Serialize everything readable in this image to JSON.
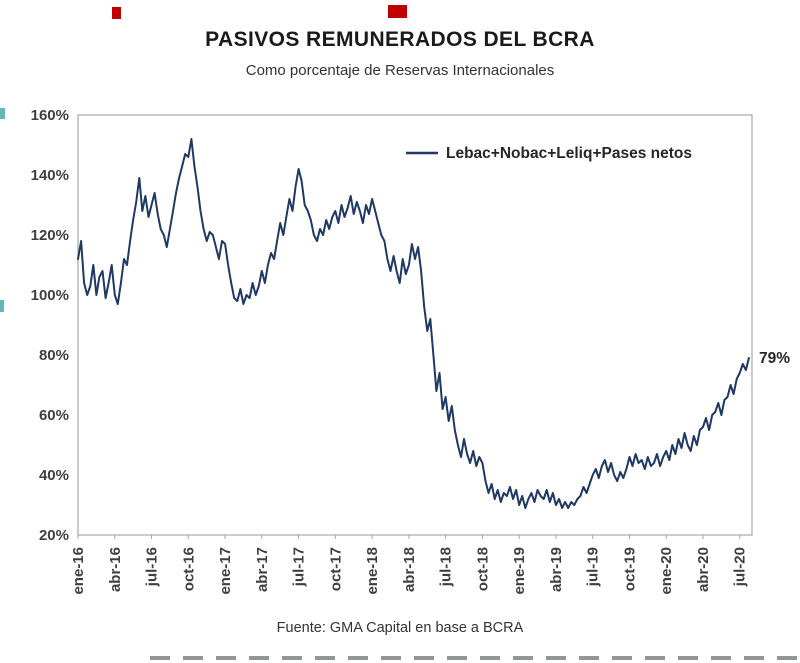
{
  "chart_data": {
    "type": "line",
    "title": "PASIVOS REMUNERADOS DEL BCRA",
    "subtitle": "Como porcentaje de Reservas Internacionales",
    "source": "Fuente: GMA Capital en base a BCRA",
    "legend": [
      {
        "name": "Lebac+Nobac+Leliq+Pases netos",
        "color": "#1f3864"
      }
    ],
    "end_label": "79%",
    "line_color": "#1f3864",
    "ylim": [
      20,
      160
    ],
    "y_ticks": [
      160,
      140,
      120,
      100,
      80,
      60,
      40,
      20
    ],
    "y_tick_suffix": "%",
    "x_tick_labels": [
      "ene-16",
      "abr-16",
      "jul-16",
      "oct-16",
      "ene-17",
      "abr-17",
      "jul-17",
      "oct-17",
      "ene-18",
      "abr-18",
      "jul-18",
      "oct-18",
      "ene-19",
      "abr-19",
      "jul-19",
      "oct-19",
      "ene-20",
      "abr-20",
      "jul-20"
    ],
    "x_tick_positions_months": [
      0,
      3,
      6,
      9,
      12,
      15,
      18,
      21,
      24,
      27,
      30,
      33,
      36,
      39,
      42,
      45,
      48,
      51,
      54
    ],
    "x_total_months": 55,
    "points_per_month": 4,
    "values": [
      112,
      118,
      104,
      100,
      103,
      110,
      100,
      106,
      108,
      99,
      104,
      110,
      100,
      97,
      104,
      112,
      110,
      118,
      125,
      131,
      139,
      128,
      133,
      126,
      130,
      134,
      127,
      122,
      120,
      116,
      122,
      128,
      134,
      139,
      143,
      147,
      146,
      152,
      143,
      136,
      128,
      122,
      118,
      121,
      120,
      116,
      112,
      118,
      117,
      110,
      104,
      99,
      98,
      102,
      97,
      100,
      99,
      104,
      100,
      103,
      108,
      104,
      110,
      114,
      112,
      118,
      124,
      120,
      126,
      132,
      128,
      136,
      142,
      138,
      130,
      128,
      125,
      120,
      118,
      122,
      120,
      125,
      122,
      126,
      128,
      124,
      130,
      126,
      129,
      133,
      127,
      131,
      128,
      124,
      130,
      127,
      132,
      128,
      124,
      120,
      118,
      112,
      108,
      113,
      108,
      104,
      112,
      107,
      110,
      117,
      112,
      116,
      108,
      96,
      88,
      92,
      80,
      68,
      74,
      62,
      66,
      58,
      63,
      55,
      50,
      46,
      52,
      47,
      44,
      48,
      43,
      46,
      44,
      38,
      34,
      37,
      32,
      35,
      31,
      34,
      33,
      36,
      32,
      35,
      30,
      33,
      29,
      32,
      34,
      31,
      35,
      33,
      32,
      35,
      31,
      34,
      30,
      32,
      29,
      31,
      29,
      31,
      30,
      32,
      33,
      36,
      34,
      37,
      40,
      42,
      39,
      43,
      45,
      41,
      44,
      40,
      38,
      41,
      39,
      42,
      46,
      43,
      47,
      44,
      45,
      42,
      46,
      43,
      44,
      47,
      43,
      46,
      48,
      45,
      50,
      47,
      52,
      49,
      54,
      50,
      48,
      53,
      50,
      55,
      56,
      59,
      55,
      60,
      61,
      64,
      60,
      65,
      66,
      70,
      67,
      72,
      74,
      77,
      75,
      79
    ]
  }
}
